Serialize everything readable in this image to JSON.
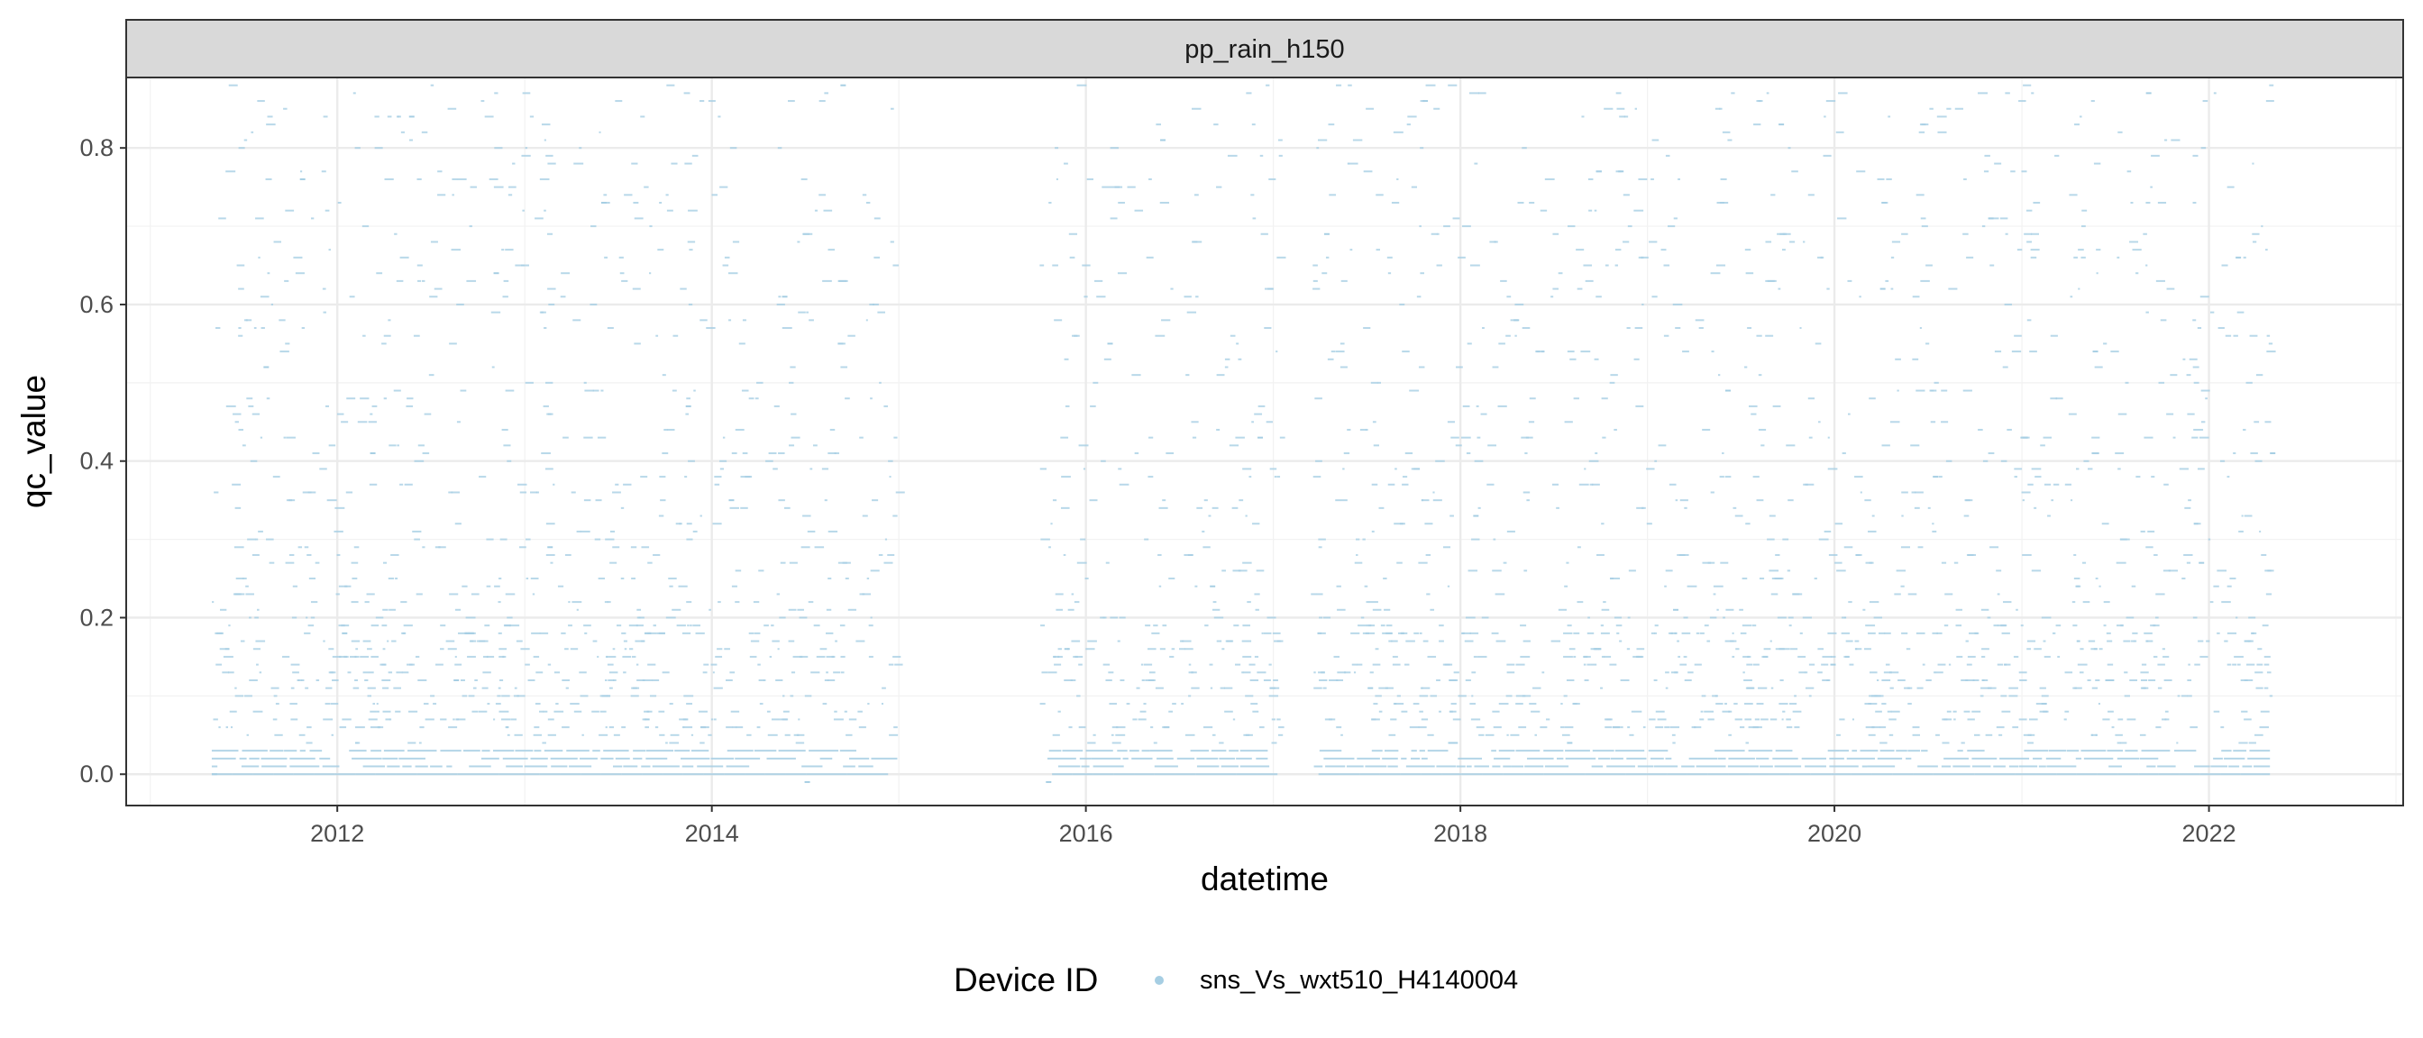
{
  "chart_data": {
    "type": "scatter",
    "facet_label": "pp_rain_h150",
    "xlabel": "datetime",
    "ylabel": "qc_value",
    "x_axis_type": "date",
    "xlim": [
      "2010-11-15",
      "2023-01-15"
    ],
    "ylim": [
      -0.04,
      0.89
    ],
    "x_ticks": [
      "2012",
      "2014",
      "2016",
      "2018",
      "2020",
      "2022"
    ],
    "y_ticks": [
      "0.0",
      "0.2",
      "0.4",
      "0.6",
      "0.8"
    ],
    "grid": true,
    "legend": {
      "title": "Device ID",
      "position": "bottom",
      "entries": [
        {
          "label": "sns_Vs_wxt510_H4140004",
          "color": "#a6cee3"
        }
      ]
    },
    "series": [
      {
        "name": "sns_Vs_wxt510_H4140004",
        "color": "#a6cee3",
        "x_range": [
          "2011-05-01",
          "2022-04-30"
        ],
        "y_resolution": 0.01,
        "y_range_observed": [
          -0.01,
          0.88
        ],
        "data_gaps": [
          [
            "2015-01-01",
            "2015-09-30"
          ],
          [
            "2017-01-15",
            "2017-03-15"
          ]
        ],
        "sample_points": [
          {
            "x": "2011-05-01",
            "y": 0.0
          },
          {
            "x": "2011-06-15",
            "y": 0.23
          },
          {
            "x": "2011-08-10",
            "y": 0.52
          },
          {
            "x": "2011-10-20",
            "y": 0.76
          },
          {
            "x": "2012-01-10",
            "y": 0.18
          },
          {
            "x": "2012-03-05",
            "y": 0.41
          },
          {
            "x": "2012-05-20",
            "y": 0.84
          },
          {
            "x": "2012-08-15",
            "y": 0.12
          },
          {
            "x": "2012-11-01",
            "y": 0.64
          },
          {
            "x": "2013-02-14",
            "y": 0.29
          },
          {
            "x": "2013-05-30",
            "y": 0.73
          },
          {
            "x": "2013-08-22",
            "y": 0.07
          },
          {
            "x": "2013-11-11",
            "y": 0.47
          },
          {
            "x": "2014-02-03",
            "y": 0.35
          },
          {
            "x": "2014-05-18",
            "y": 0.61
          },
          {
            "x": "2014-07-01",
            "y": -0.01
          },
          {
            "x": "2014-09-09",
            "y": 0.88
          },
          {
            "x": "2015-10-15",
            "y": -0.01
          },
          {
            "x": "2015-11-20",
            "y": 0.16
          },
          {
            "x": "2016-02-12",
            "y": 0.55
          },
          {
            "x": "2016-05-25",
            "y": 0.81
          },
          {
            "x": "2016-08-30",
            "y": 0.24
          },
          {
            "x": "2016-12-01",
            "y": 0.43
          },
          {
            "x": "2017-04-10",
            "y": 0.69
          },
          {
            "x": "2017-07-04",
            "y": 0.11
          },
          {
            "x": "2017-10-19",
            "y": 0.86
          },
          {
            "x": "2018-01-26",
            "y": 0.33
          },
          {
            "x": "2018-04-15",
            "y": 0.58
          },
          {
            "x": "2018-07-28",
            "y": 0.04
          },
          {
            "x": "2018-11-05",
            "y": 0.77
          },
          {
            "x": "2019-02-20",
            "y": 0.21
          },
          {
            "x": "2019-06-02",
            "y": 0.49
          },
          {
            "x": "2019-09-14",
            "y": 0.83
          },
          {
            "x": "2019-12-24",
            "y": 0.14
          },
          {
            "x": "2020-03-30",
            "y": 0.62
          },
          {
            "x": "2020-07-11",
            "y": 0.38
          },
          {
            "x": "2020-10-27",
            "y": 0.71
          },
          {
            "x": "2021-02-08",
            "y": 0.09
          },
          {
            "x": "2021-05-19",
            "y": 0.54
          },
          {
            "x": "2021-08-31",
            "y": 0.87
          },
          {
            "x": "2021-12-12",
            "y": 0.27
          },
          {
            "x": "2022-02-22",
            "y": 0.66
          },
          {
            "x": "2022-04-30",
            "y": 0.41
          }
        ]
      }
    ]
  }
}
